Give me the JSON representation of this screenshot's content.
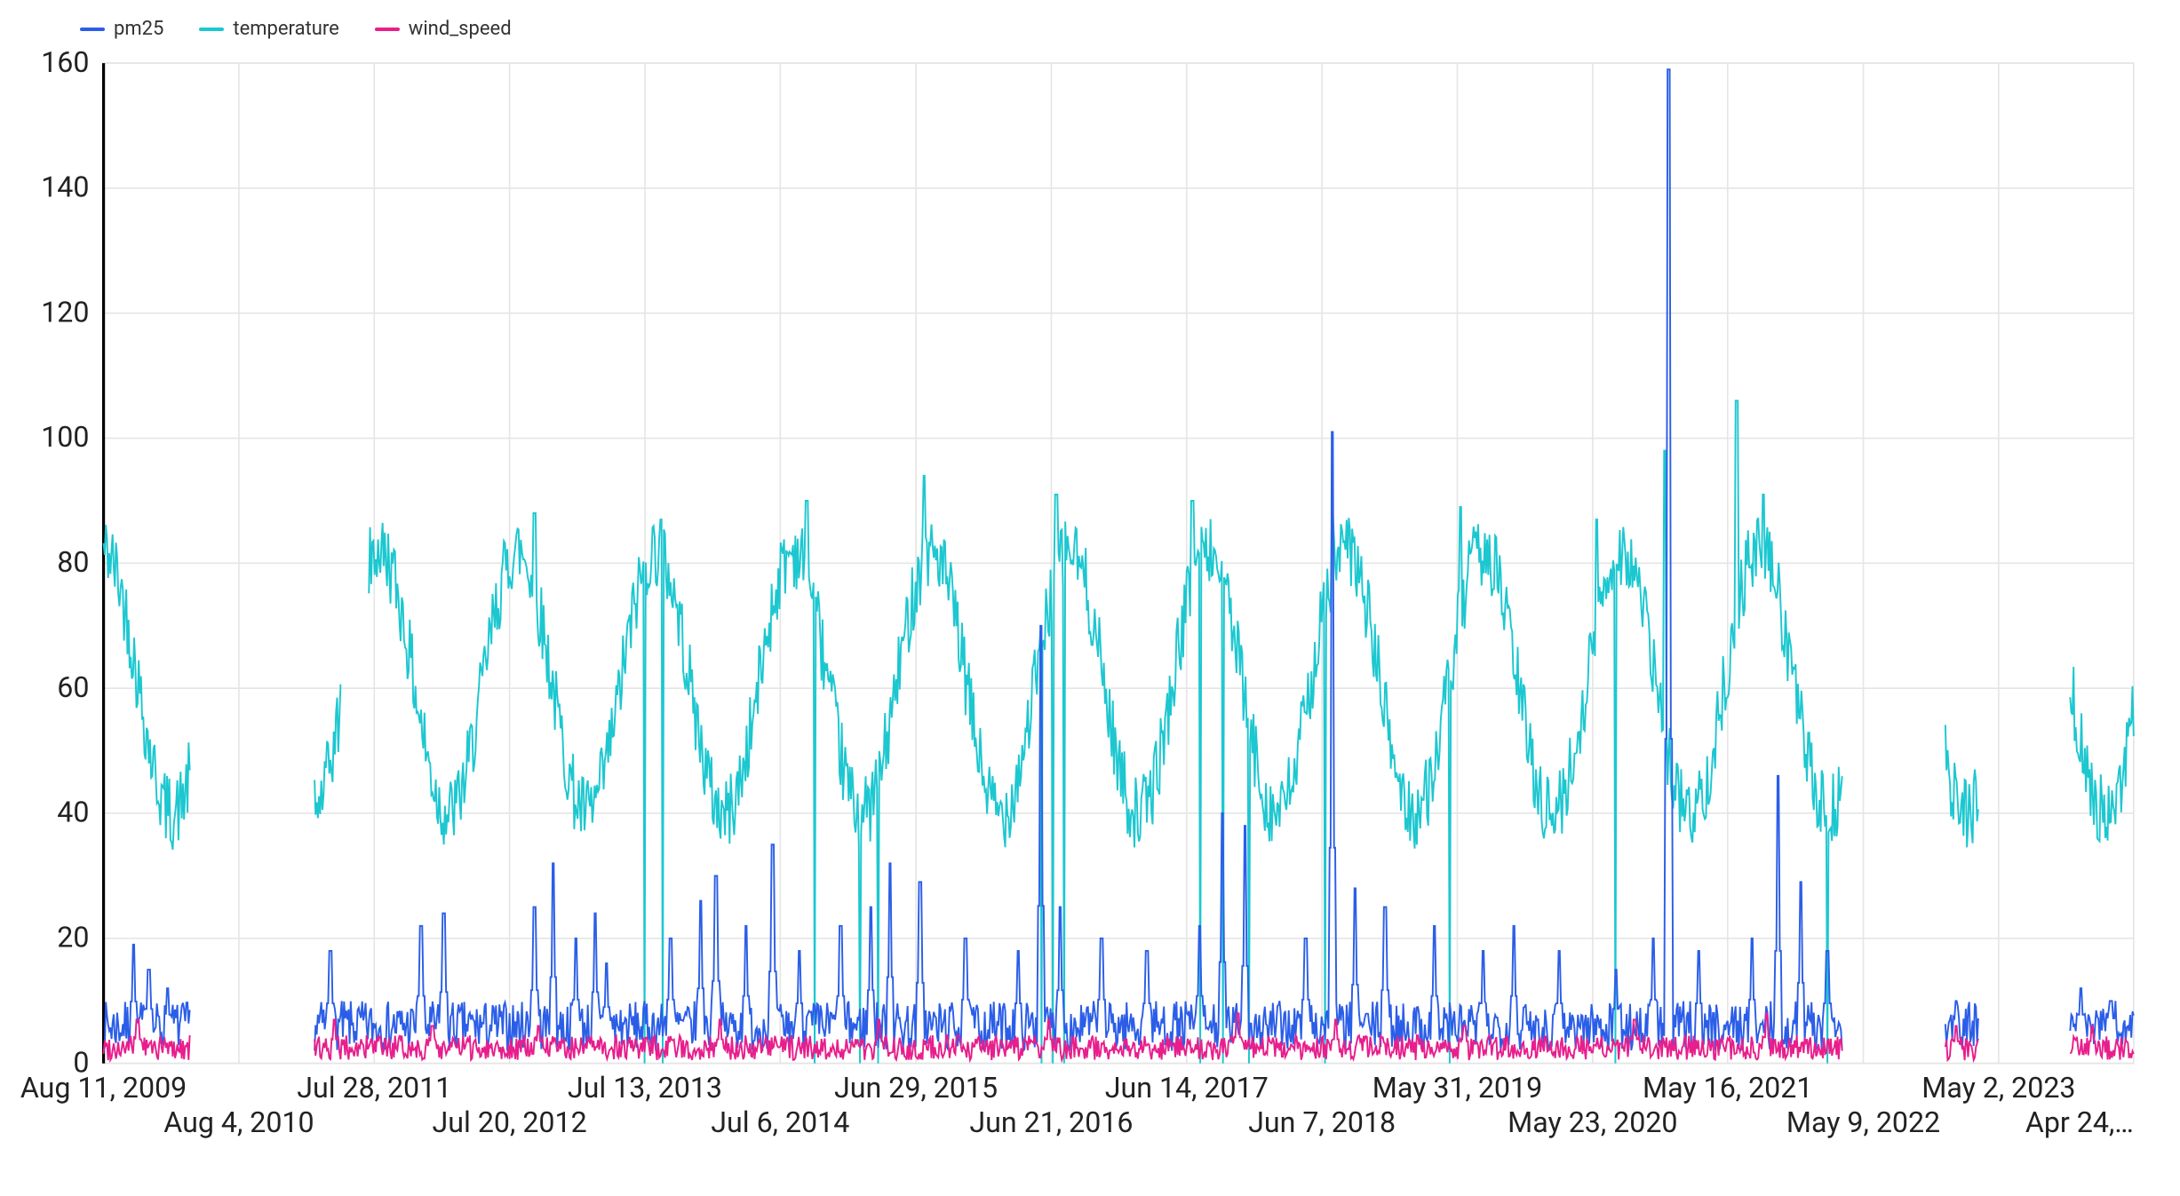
{
  "chart": {
    "type": "line",
    "background_color": "#ffffff",
    "grid_color": "#e5e5e5",
    "axis_color": "#000000",
    "label_color": "#222222",
    "label_fontsize": 20,
    "legend_fontsize": 22,
    "line_width": 1.2,
    "ylim": [
      0,
      160
    ],
    "ytick_step": 20,
    "yticks": [
      0,
      20,
      40,
      60,
      80,
      100,
      120,
      140,
      160
    ],
    "x_start_label": "Aug 11, 2009",
    "x_end_label": "Apr 24,…",
    "x_start_value": 0,
    "x_end_value": 5370,
    "x_major_ticks": [
      {
        "pos": 0,
        "label": "Aug 11, 2009"
      },
      {
        "pos": 716,
        "label": "Jul 28, 2011"
      },
      {
        "pos": 1432,
        "label": "Jul 13, 2013"
      },
      {
        "pos": 2149,
        "label": "Jun 29, 2015"
      },
      {
        "pos": 2865,
        "label": "Jun 14, 2017"
      },
      {
        "pos": 3581,
        "label": "May 31, 2019"
      },
      {
        "pos": 4296,
        "label": "May 16, 2021"
      },
      {
        "pos": 5013,
        "label": "May 2, 2023"
      }
    ],
    "x_minor_ticks": [
      {
        "pos": 358,
        "label": "Aug 4, 2010"
      },
      {
        "pos": 1074,
        "label": "Jul 20, 2012"
      },
      {
        "pos": 1790,
        "label": "Jul 6, 2014"
      },
      {
        "pos": 2507,
        "label": "Jun 21, 2016"
      },
      {
        "pos": 3223,
        "label": "Jun 7, 2018"
      },
      {
        "pos": 3939,
        "label": "May 23, 2020"
      },
      {
        "pos": 4655,
        "label": "May 9, 2022"
      },
      {
        "pos": 5370,
        "label": "Apr 24,…"
      }
    ],
    "series": [
      {
        "name": "pm25",
        "color": "#2b5ee8",
        "baseline": 6,
        "noise_amp": 4,
        "spikes": [
          {
            "x": 80,
            "y": 19
          },
          {
            "x": 120,
            "y": 15
          },
          {
            "x": 170,
            "y": 12
          },
          {
            "x": 600,
            "y": 18
          },
          {
            "x": 840,
            "y": 22
          },
          {
            "x": 900,
            "y": 24
          },
          {
            "x": 1140,
            "y": 25
          },
          {
            "x": 1190,
            "y": 32
          },
          {
            "x": 1250,
            "y": 20
          },
          {
            "x": 1300,
            "y": 24
          },
          {
            "x": 1330,
            "y": 16
          },
          {
            "x": 1500,
            "y": 20
          },
          {
            "x": 1580,
            "y": 26
          },
          {
            "x": 1620,
            "y": 30
          },
          {
            "x": 1700,
            "y": 22
          },
          {
            "x": 1770,
            "y": 35
          },
          {
            "x": 1840,
            "y": 18
          },
          {
            "x": 1950,
            "y": 22
          },
          {
            "x": 2030,
            "y": 25
          },
          {
            "x": 2080,
            "y": 32
          },
          {
            "x": 2160,
            "y": 29
          },
          {
            "x": 2280,
            "y": 20
          },
          {
            "x": 2420,
            "y": 18
          },
          {
            "x": 2480,
            "y": 70
          },
          {
            "x": 2530,
            "y": 25
          },
          {
            "x": 2640,
            "y": 20
          },
          {
            "x": 2760,
            "y": 18
          },
          {
            "x": 2900,
            "y": 22
          },
          {
            "x": 2960,
            "y": 40
          },
          {
            "x": 3020,
            "y": 38
          },
          {
            "x": 3180,
            "y": 20
          },
          {
            "x": 3250,
            "y": 101
          },
          {
            "x": 3310,
            "y": 28
          },
          {
            "x": 3390,
            "y": 25
          },
          {
            "x": 3520,
            "y": 22
          },
          {
            "x": 3650,
            "y": 18
          },
          {
            "x": 3730,
            "y": 22
          },
          {
            "x": 3850,
            "y": 18
          },
          {
            "x": 4000,
            "y": 15
          },
          {
            "x": 4100,
            "y": 20
          },
          {
            "x": 4140,
            "y": 159
          },
          {
            "x": 4220,
            "y": 18
          },
          {
            "x": 4360,
            "y": 20
          },
          {
            "x": 4430,
            "y": 46
          },
          {
            "x": 4490,
            "y": 29
          },
          {
            "x": 4560,
            "y": 18
          },
          {
            "x": 4900,
            "y": 10
          },
          {
            "x": 5230,
            "y": 12
          },
          {
            "x": 5310,
            "y": 10
          }
        ],
        "gaps": [
          {
            "from": 230,
            "to": 555
          },
          {
            "from": 4600,
            "to": 4870
          },
          {
            "from": 4960,
            "to": 5200
          }
        ]
      },
      {
        "name": "temperature",
        "color": "#1cc7d0",
        "seasonal_min": 40,
        "seasonal_max": 82,
        "noise_amp": 6,
        "period": 365,
        "phase": 0,
        "extremes": [
          {
            "x": 1140,
            "y": 88
          },
          {
            "x": 1475,
            "y": 87
          },
          {
            "x": 1860,
            "y": 90
          },
          {
            "x": 2170,
            "y": 94
          },
          {
            "x": 2520,
            "y": 91
          },
          {
            "x": 2880,
            "y": 90
          },
          {
            "x": 3250,
            "y": 88
          },
          {
            "x": 3590,
            "y": 89
          },
          {
            "x": 3950,
            "y": 87
          },
          {
            "x": 4130,
            "y": 98
          },
          {
            "x": 4320,
            "y": 106
          },
          {
            "x": 4390,
            "y": 91
          }
        ],
        "dropouts": [
          {
            "x": 1430
          },
          {
            "x": 1480
          },
          {
            "x": 1880
          },
          {
            "x": 2000
          },
          {
            "x": 2050
          },
          {
            "x": 2480
          },
          {
            "x": 2510
          },
          {
            "x": 2540
          },
          {
            "x": 2900
          },
          {
            "x": 2960
          },
          {
            "x": 3030
          },
          {
            "x": 3230
          },
          {
            "x": 3560
          },
          {
            "x": 4000
          },
          {
            "x": 4560
          }
        ],
        "gaps": [
          {
            "from": 230,
            "to": 555
          },
          {
            "from": 630,
            "to": 700
          },
          {
            "from": 4600,
            "to": 4870
          },
          {
            "from": 4960,
            "to": 5200
          }
        ]
      },
      {
        "name": "wind_speed",
        "color": "#e81e8c",
        "baseline": 2.5,
        "noise_amp": 2,
        "spikes": [
          {
            "x": 90,
            "y": 7
          },
          {
            "x": 610,
            "y": 7
          },
          {
            "x": 870,
            "y": 6
          },
          {
            "x": 1150,
            "y": 6
          },
          {
            "x": 1630,
            "y": 7
          },
          {
            "x": 2050,
            "y": 7
          },
          {
            "x": 2500,
            "y": 7
          },
          {
            "x": 3000,
            "y": 8
          },
          {
            "x": 3260,
            "y": 7
          },
          {
            "x": 3600,
            "y": 6
          },
          {
            "x": 4050,
            "y": 7
          },
          {
            "x": 4400,
            "y": 8
          },
          {
            "x": 4900,
            "y": 6
          },
          {
            "x": 5260,
            "y": 6
          }
        ],
        "gaps": [
          {
            "from": 230,
            "to": 555
          },
          {
            "from": 4600,
            "to": 4870
          },
          {
            "from": 4960,
            "to": 5200
          }
        ]
      }
    ],
    "legend": {
      "position": "top-left",
      "items": [
        {
          "label": "pm25",
          "color": "#2b5ee8"
        },
        {
          "label": "temperature",
          "color": "#1cc7d0"
        },
        {
          "label": "wind_speed",
          "color": "#e81e8c"
        }
      ]
    }
  }
}
